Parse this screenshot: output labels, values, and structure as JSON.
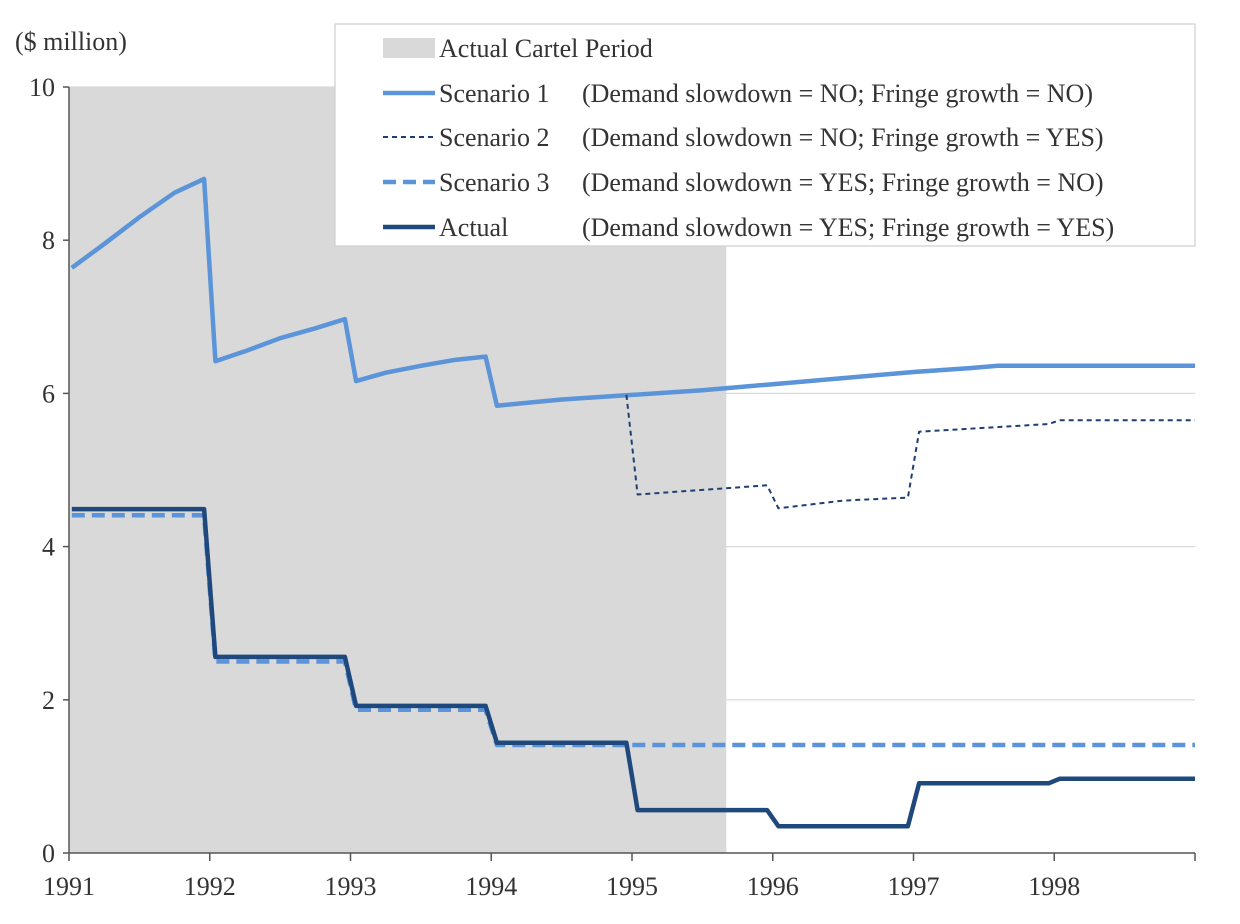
{
  "chart_data": {
    "type": "line",
    "title": "",
    "ylabel": "($ million)",
    "xlabel": "",
    "xlim": [
      1991,
      1999
    ],
    "ylim": [
      0,
      10
    ],
    "y_ticks": [
      0,
      2,
      4,
      6,
      8,
      10
    ],
    "x_ticks": [
      1991,
      1992,
      1993,
      1994,
      1995,
      1996,
      1997,
      1998
    ],
    "grid": "horizontal",
    "legend_position": "top-right",
    "shaded_period": {
      "name": "Actual Cartel Period",
      "x_start": 1991,
      "x_end": 1995.67,
      "color": "#d9d9d9"
    },
    "series": [
      {
        "name": "Scenario 1",
        "legend_label": "Scenario 1",
        "legend_note": "(Demand slowdown = NO; Fringe growth = NO)",
        "color": "#5b94d8",
        "style": "solid-thick",
        "points": [
          [
            1991.02,
            7.64
          ],
          [
            1991.25,
            7.95
          ],
          [
            1991.5,
            8.3
          ],
          [
            1991.75,
            8.62
          ],
          [
            1991.96,
            8.8
          ],
          [
            1992.04,
            6.42
          ],
          [
            1992.25,
            6.55
          ],
          [
            1992.5,
            6.72
          ],
          [
            1992.75,
            6.85
          ],
          [
            1992.96,
            6.97
          ],
          [
            1993.04,
            6.16
          ],
          [
            1993.25,
            6.27
          ],
          [
            1993.5,
            6.36
          ],
          [
            1993.75,
            6.44
          ],
          [
            1993.96,
            6.48
          ],
          [
            1994.04,
            5.84
          ],
          [
            1994.5,
            5.92
          ],
          [
            1995.0,
            5.98
          ],
          [
            1995.5,
            6.04
          ],
          [
            1996.0,
            6.12
          ],
          [
            1996.5,
            6.2
          ],
          [
            1997.0,
            6.28
          ],
          [
            1997.4,
            6.33
          ],
          [
            1997.6,
            6.36
          ],
          [
            1999.0,
            6.36
          ]
        ]
      },
      {
        "name": "Scenario 2",
        "legend_label": "Scenario 2",
        "legend_note": "(Demand slowdown = NO; Fringe growth = YES)",
        "color": "#1f3f73",
        "style": "dotted-thin",
        "points": [
          [
            1994.96,
            5.98
          ],
          [
            1995.04,
            4.68
          ],
          [
            1995.5,
            4.74
          ],
          [
            1995.96,
            4.8
          ],
          [
            1996.04,
            4.5
          ],
          [
            1996.5,
            4.6
          ],
          [
            1996.96,
            4.64
          ],
          [
            1997.04,
            5.5
          ],
          [
            1997.5,
            5.55
          ],
          [
            1997.96,
            5.6
          ],
          [
            1998.04,
            5.65
          ],
          [
            1999.0,
            5.65
          ]
        ]
      },
      {
        "name": "Scenario 3",
        "legend_label": "Scenario 3",
        "legend_note": "(Demand slowdown = YES; Fringe growth = NO)",
        "color": "#5b94d8",
        "style": "dashed-thick",
        "points": [
          [
            1991.02,
            4.41
          ],
          [
            1991.96,
            4.41
          ],
          [
            1992.04,
            2.5
          ],
          [
            1992.96,
            2.5
          ],
          [
            1993.04,
            1.87
          ],
          [
            1993.96,
            1.87
          ],
          [
            1994.04,
            1.41
          ],
          [
            1999.0,
            1.41
          ]
        ]
      },
      {
        "name": "Actual",
        "legend_label": "Actual",
        "legend_note": "(Demand slowdown = YES; Fringe growth = YES)",
        "color": "#1f497d",
        "style": "solid-thick",
        "points": [
          [
            1991.02,
            4.49
          ],
          [
            1991.96,
            4.49
          ],
          [
            1992.04,
            2.56
          ],
          [
            1992.96,
            2.56
          ],
          [
            1993.04,
            1.92
          ],
          [
            1993.96,
            1.92
          ],
          [
            1994.04,
            1.44
          ],
          [
            1994.96,
            1.44
          ],
          [
            1995.04,
            0.56
          ],
          [
            1995.96,
            0.56
          ],
          [
            1996.04,
            0.35
          ],
          [
            1996.96,
            0.35
          ],
          [
            1997.04,
            0.91
          ],
          [
            1997.96,
            0.91
          ],
          [
            1998.04,
            0.97
          ],
          [
            1999.0,
            0.97
          ]
        ]
      }
    ]
  }
}
